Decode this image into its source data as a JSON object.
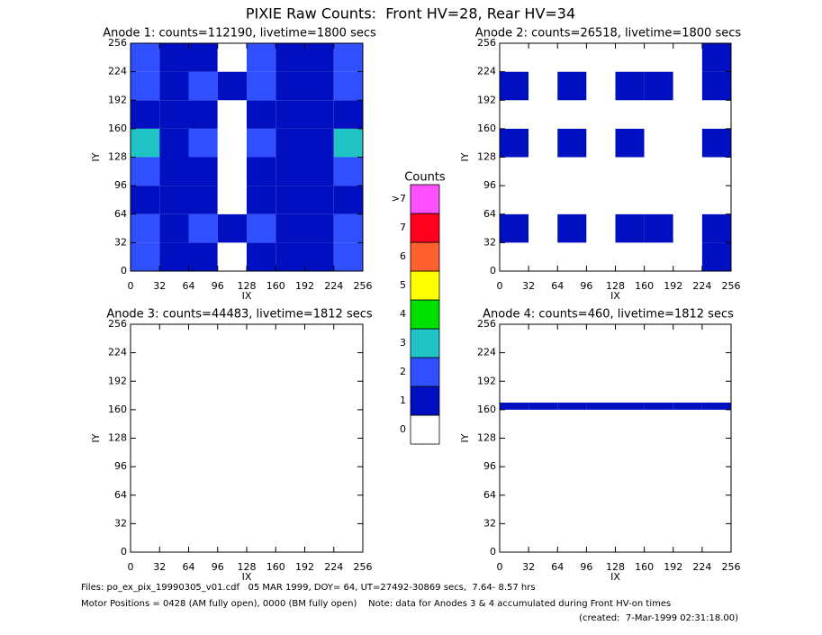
{
  "title": "PIXIE Raw Counts:  Front HV=28, Rear HV=34",
  "chart_data": [
    {
      "type": "heatmap",
      "title": "Anode 1: counts=112190, livetime=1800 secs",
      "x_label": "IX",
      "y_label": "IY",
      "xlim": [
        0,
        256
      ],
      "ylim": [
        0,
        256
      ],
      "xticks": [
        0,
        32,
        64,
        96,
        128,
        160,
        192,
        224,
        256
      ],
      "yticks": [
        0,
        32,
        64,
        96,
        128,
        160,
        192,
        224,
        256
      ],
      "z": [
        [
          2.0,
          1.1,
          1.6,
          0.9,
          1.5,
          1.3,
          1.1,
          2.2
        ],
        [
          2.5,
          1.2,
          2.1,
          1.0,
          2.3,
          1.6,
          1.3,
          2.6
        ],
        [
          1.8,
          1.0,
          1.3,
          0.8,
          1.2,
          1.2,
          1.0,
          1.9
        ],
        [
          2.2,
          1.1,
          1.5,
          0.9,
          1.4,
          1.3,
          1.1,
          2.0
        ],
        [
          3.1,
          1.3,
          2.2,
          0.9,
          2.6,
          1.7,
          1.4,
          3.0
        ],
        [
          1.9,
          1.0,
          1.3,
          0.8,
          1.3,
          1.2,
          1.0,
          1.8
        ],
        [
          2.6,
          1.2,
          2.2,
          1.0,
          2.4,
          1.6,
          1.2,
          2.5
        ],
        [
          2.0,
          1.1,
          1.5,
          0.9,
          2.5,
          1.5,
          1.1,
          2.0
        ]
      ]
    },
    {
      "type": "heatmap",
      "title": "Anode 2: counts=26518, livetime=1800 secs",
      "x_label": "IX",
      "y_label": "IY",
      "xlim": [
        0,
        256
      ],
      "ylim": [
        0,
        256
      ],
      "xticks": [
        0,
        32,
        64,
        96,
        128,
        160,
        192,
        224,
        256
      ],
      "yticks": [
        0,
        32,
        64,
        96,
        128,
        160,
        192,
        224,
        256
      ],
      "z": [
        [
          0.9,
          0.3,
          0.6,
          0.2,
          0.7,
          0.5,
          0.3,
          1.0
        ],
        [
          1.0,
          0.3,
          1.2,
          0.2,
          1.2,
          1.1,
          0.3,
          1.1
        ],
        [
          0.5,
          0.2,
          0.3,
          0.2,
          0.3,
          0.3,
          0.2,
          0.6
        ],
        [
          0.8,
          0.3,
          0.4,
          0.2,
          0.4,
          0.4,
          0.3,
          0.8
        ],
        [
          1.1,
          0.3,
          1.1,
          0.2,
          1.1,
          0.5,
          0.3,
          1.1
        ],
        [
          0.6,
          0.2,
          0.3,
          0.2,
          0.3,
          0.3,
          0.2,
          0.6
        ],
        [
          1.1,
          0.3,
          1.1,
          0.2,
          1.0,
          1.1,
          0.3,
          1.1
        ],
        [
          0.6,
          0.2,
          0.3,
          0.2,
          0.3,
          0.3,
          0.2,
          1.2
        ]
      ]
    },
    {
      "type": "heatmap",
      "title": "Anode 3: counts=44483, livetime=1812 secs",
      "x_label": "IX",
      "y_label": "IY",
      "xlim": [
        0,
        256
      ],
      "ylim": [
        0,
        256
      ],
      "xticks": [
        0,
        32,
        64,
        96,
        128,
        160,
        192,
        224,
        256
      ],
      "yticks": [
        0,
        32,
        64,
        96,
        128,
        160,
        192,
        224,
        256
      ],
      "z": [
        [
          0,
          0,
          0,
          0,
          0,
          0,
          0,
          0
        ],
        [
          0,
          0,
          0,
          0,
          0,
          0,
          0,
          0
        ],
        [
          0,
          0,
          0,
          0,
          0,
          0,
          0,
          0
        ],
        [
          0,
          0,
          0,
          0,
          0,
          0,
          0,
          0
        ],
        [
          0,
          0,
          0,
          0,
          0,
          0,
          0,
          0
        ],
        [
          0,
          0,
          0,
          0,
          0,
          0,
          0,
          0
        ],
        [
          0,
          0,
          0,
          0,
          0,
          0,
          0,
          0
        ],
        [
          0,
          0,
          0,
          0,
          0,
          0,
          0,
          0
        ]
      ]
    },
    {
      "type": "heatmap",
      "title": "Anode 4: counts=460, livetime=1812 secs",
      "x_label": "IX",
      "y_label": "IY",
      "xlim": [
        0,
        256
      ],
      "ylim": [
        0,
        256
      ],
      "xticks": [
        0,
        32,
        64,
        96,
        128,
        160,
        192,
        224,
        256
      ],
      "yticks": [
        0,
        32,
        64,
        96,
        128,
        160,
        192,
        224,
        256
      ],
      "z": [
        [
          0,
          0,
          0,
          0,
          0,
          0,
          0,
          0
        ],
        [
          0,
          0,
          0,
          0,
          0,
          0,
          0,
          0
        ],
        [
          0,
          0,
          0,
          0,
          0,
          0,
          0,
          0
        ],
        [
          0,
          0,
          0,
          0,
          0,
          0,
          0,
          0
        ],
        [
          0,
          0,
          0,
          0,
          0,
          0,
          0,
          0
        ],
        [
          0,
          0,
          0,
          0,
          0,
          0,
          0,
          0
        ],
        [
          0,
          0,
          0,
          0,
          0,
          0,
          0,
          0
        ],
        [
          0,
          0,
          0,
          0,
          0,
          0,
          0,
          0
        ],
        [
          0,
          0,
          0,
          0,
          0,
          0,
          0,
          0
        ],
        [
          0,
          0,
          0,
          0,
          0,
          0,
          0,
          0
        ],
        [
          0,
          0,
          0,
          0,
          0,
          0,
          0,
          0
        ],
        [
          0,
          0,
          0,
          0,
          0,
          0,
          0,
          0
        ],
        [
          0,
          0,
          0,
          0,
          0,
          0,
          0,
          0
        ],
        [
          0,
          0,
          0,
          0,
          0,
          0,
          0,
          0
        ],
        [
          0,
          0,
          0,
          0,
          0,
          0,
          0,
          0
        ],
        [
          0,
          0,
          0,
          0,
          0,
          0,
          0,
          0
        ],
        [
          0,
          0,
          0,
          0,
          0,
          0,
          0,
          0
        ],
        [
          0,
          0,
          0,
          0,
          0,
          0,
          0,
          0
        ],
        [
          0,
          0,
          0,
          0,
          0,
          0,
          0,
          0
        ],
        [
          0,
          0,
          0,
          0,
          0,
          0,
          0,
          0
        ],
        [
          1,
          1,
          1,
          1,
          1,
          1,
          1,
          1
        ],
        [
          0,
          0,
          0,
          0,
          0,
          0,
          0,
          0
        ],
        [
          0,
          0,
          0,
          0,
          0,
          0,
          0,
          0
        ],
        [
          0,
          0,
          0,
          0,
          0,
          0,
          0,
          0
        ],
        [
          0,
          0,
          0,
          0,
          0,
          0,
          0,
          0
        ],
        [
          0,
          0,
          0,
          0,
          0,
          0,
          0,
          0
        ],
        [
          0,
          0,
          0,
          0,
          0,
          0,
          0,
          0
        ],
        [
          0,
          0,
          0,
          0,
          0,
          0,
          0,
          0
        ],
        [
          0,
          0,
          0,
          0,
          0,
          0,
          0,
          0
        ],
        [
          0,
          0,
          0,
          0,
          0,
          0,
          0,
          0
        ],
        [
          0,
          0,
          0,
          0,
          0,
          0,
          0,
          0
        ],
        [
          0,
          0,
          0,
          0,
          0,
          0,
          0,
          0
        ]
      ]
    }
  ],
  "colorbar": {
    "title": "Counts",
    "labels": [
      "0",
      "1",
      "2",
      "3",
      "4",
      "5",
      "6",
      "7",
      ">7"
    ],
    "colors": [
      "#ffffff",
      "#0010c0",
      "#3050ff",
      "#20c4c4",
      "#00e000",
      "#ffff00",
      "#ff6030",
      "#ff0020",
      "#ff50ff"
    ]
  },
  "footer": [
    "Files: po_ex_pix_19990305_v01.cdf   05 MAR 1999, DOY= 64, UT=27492-30869 secs,  7.64- 8.57 hrs",
    "Motor Positions = 0428 (AM fully open), 0000 (BM fully open)    Note: data for Anodes 3 & 4 accumulated during Front HV-on times",
    "(created:  7-Mar-1999 02:31:18.00)"
  ]
}
